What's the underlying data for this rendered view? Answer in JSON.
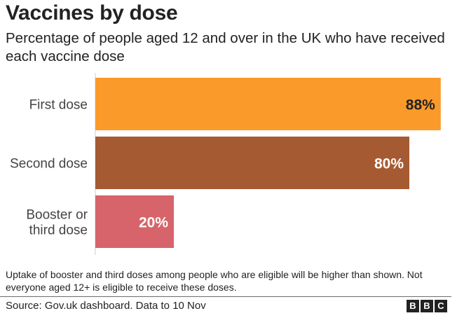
{
  "title": "Vaccines by dose",
  "subtitle": "Percentage of people aged 12 and over in the UK who have received each vaccine dose",
  "note": "Uptake of booster and third doses among people who are eligible will be higher than shown. Not everyone aged 12+ is eligible to receive these doses.",
  "source": "Source: Gov.uk dashboard. Data to 10 Nov",
  "logo": [
    "B",
    "B",
    "C"
  ],
  "chart_data": {
    "type": "bar",
    "orientation": "horizontal",
    "title": "Vaccines by dose",
    "subtitle": "Percentage of people aged 12 and over in the UK who have received each vaccine dose",
    "categories": [
      [
        "First dose"
      ],
      [
        "Second dose"
      ],
      [
        "Booster or",
        "third dose"
      ]
    ],
    "values": [
      88,
      80,
      20
    ],
    "value_labels": [
      "88%",
      "80%",
      "20%"
    ],
    "colors": [
      "#fa9a2a",
      "#a65a32",
      "#d6646a"
    ],
    "label_colors": [
      "#222222",
      "#ffffff",
      "#ffffff"
    ],
    "xlim": [
      0,
      100
    ],
    "grid": false,
    "legend": "none"
  }
}
